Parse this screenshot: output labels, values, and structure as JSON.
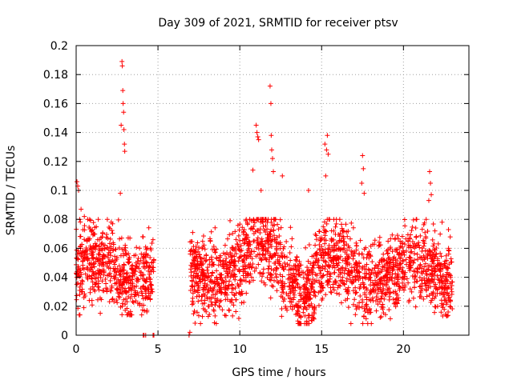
{
  "chart_data": {
    "type": "scatter",
    "title": "Day 309 of 2021, SRMTID for receiver ptsv",
    "xlabel": "GPS time / hours",
    "ylabel": "SRMTID / TECUs",
    "xlim": [
      0,
      24
    ],
    "ylim": [
      0,
      0.2
    ],
    "xticks": [
      0,
      5,
      10,
      15,
      20
    ],
    "yticks": [
      0,
      0.02,
      0.04,
      0.06,
      0.08,
      0.1,
      0.12,
      0.14,
      0.16,
      0.18,
      0.2
    ],
    "xtick_labels": [
      "0",
      "5",
      "10",
      "15",
      "20"
    ],
    "ytick_labels": [
      "0",
      "0.02",
      "0.04",
      "0.06",
      "0.08",
      "0.1",
      "0.12",
      "0.14",
      "0.16",
      "0.18",
      "0.2"
    ],
    "grid": true,
    "marker": "+",
    "color": "#ff0000",
    "series": [
      {
        "name": "SRMTID",
        "segments": [
          {
            "x_start": 0.0,
            "x_end": 4.75,
            "y_min": 0.014,
            "y_max": 0.08
          },
          {
            "x_start": 6.95,
            "x_end": 23.0,
            "y_min": 0.008,
            "y_max": 0.08
          }
        ],
        "peaks": [
          {
            "x": 0.05,
            "y": 0.106
          },
          {
            "x": 0.1,
            "y": 0.103
          },
          {
            "x": 0.15,
            "y": 0.1
          },
          {
            "x": 0.3,
            "y": 0.087
          },
          {
            "x": 0.5,
            "y": 0.082
          },
          {
            "x": 2.7,
            "y": 0.098
          },
          {
            "x": 2.75,
            "y": 0.145
          },
          {
            "x": 2.8,
            "y": 0.189
          },
          {
            "x": 2.82,
            "y": 0.186
          },
          {
            "x": 2.85,
            "y": 0.169
          },
          {
            "x": 2.87,
            "y": 0.16
          },
          {
            "x": 2.9,
            "y": 0.154
          },
          {
            "x": 2.92,
            "y": 0.142
          },
          {
            "x": 2.95,
            "y": 0.132
          },
          {
            "x": 2.97,
            "y": 0.127
          },
          {
            "x": 10.8,
            "y": 0.114
          },
          {
            "x": 11.0,
            "y": 0.145
          },
          {
            "x": 11.05,
            "y": 0.14
          },
          {
            "x": 11.1,
            "y": 0.137
          },
          {
            "x": 11.15,
            "y": 0.135
          },
          {
            "x": 11.3,
            "y": 0.1
          },
          {
            "x": 11.85,
            "y": 0.172
          },
          {
            "x": 11.9,
            "y": 0.16
          },
          {
            "x": 11.92,
            "y": 0.138
          },
          {
            "x": 11.95,
            "y": 0.128
          },
          {
            "x": 12.0,
            "y": 0.122
          },
          {
            "x": 12.05,
            "y": 0.113
          },
          {
            "x": 12.6,
            "y": 0.11
          },
          {
            "x": 14.2,
            "y": 0.1
          },
          {
            "x": 15.2,
            "y": 0.132
          },
          {
            "x": 15.3,
            "y": 0.128
          },
          {
            "x": 15.35,
            "y": 0.138
          },
          {
            "x": 15.25,
            "y": 0.11
          },
          {
            "x": 15.4,
            "y": 0.125
          },
          {
            "x": 17.5,
            "y": 0.124
          },
          {
            "x": 17.55,
            "y": 0.115
          },
          {
            "x": 17.45,
            "y": 0.105
          },
          {
            "x": 17.6,
            "y": 0.098
          },
          {
            "x": 21.6,
            "y": 0.113
          },
          {
            "x": 21.65,
            "y": 0.105
          },
          {
            "x": 21.7,
            "y": 0.097
          },
          {
            "x": 21.55,
            "y": 0.093
          }
        ],
        "zero_points": [
          {
            "x": 4.1,
            "y": 0.0
          },
          {
            "x": 4.15,
            "y": 0.0
          },
          {
            "x": 4.25,
            "y": 0.0
          },
          {
            "x": 4.7,
            "y": 0.0
          },
          {
            "x": 4.75,
            "y": 0.0
          },
          {
            "x": 6.9,
            "y": 0.0
          },
          {
            "x": 6.95,
            "y": 0.002
          }
        ]
      }
    ]
  }
}
